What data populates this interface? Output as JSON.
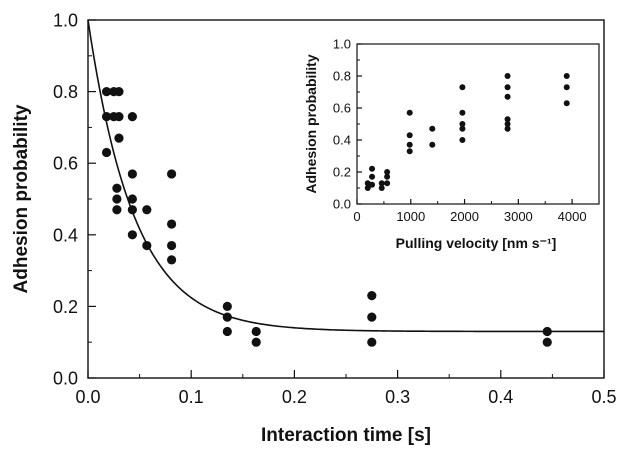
{
  "chart_data": [
    {
      "type": "scatter",
      "xlabel": "Interaction time [s]",
      "ylabel": "Adhesion probability",
      "xlim": [
        0,
        0.5
      ],
      "ylim": [
        0,
        1.0
      ],
      "x_ticks": [
        "0.0",
        "0.1",
        "0.2",
        "0.3",
        "0.4",
        "0.5"
      ],
      "y_ticks": [
        "0.0",
        "0.2",
        "0.4",
        "0.6",
        "0.8",
        "1.0"
      ],
      "grid": false,
      "points": [
        {
          "x": 0.018,
          "y": 0.63
        },
        {
          "x": 0.018,
          "y": 0.73
        },
        {
          "x": 0.018,
          "y": 0.8
        },
        {
          "x": 0.025,
          "y": 0.73
        },
        {
          "x": 0.025,
          "y": 0.8
        },
        {
          "x": 0.028,
          "y": 0.47
        },
        {
          "x": 0.028,
          "y": 0.5
        },
        {
          "x": 0.028,
          "y": 0.53
        },
        {
          "x": 0.03,
          "y": 0.67
        },
        {
          "x": 0.03,
          "y": 0.73
        },
        {
          "x": 0.03,
          "y": 0.8
        },
        {
          "x": 0.043,
          "y": 0.4
        },
        {
          "x": 0.043,
          "y": 0.47
        },
        {
          "x": 0.043,
          "y": 0.5
        },
        {
          "x": 0.043,
          "y": 0.57
        },
        {
          "x": 0.043,
          "y": 0.73
        },
        {
          "x": 0.057,
          "y": 0.37
        },
        {
          "x": 0.057,
          "y": 0.47
        },
        {
          "x": 0.081,
          "y": 0.33
        },
        {
          "x": 0.081,
          "y": 0.37
        },
        {
          "x": 0.081,
          "y": 0.43
        },
        {
          "x": 0.081,
          "y": 0.57
        },
        {
          "x": 0.135,
          "y": 0.13
        },
        {
          "x": 0.135,
          "y": 0.17
        },
        {
          "x": 0.135,
          "y": 0.2
        },
        {
          "x": 0.163,
          "y": 0.1
        },
        {
          "x": 0.163,
          "y": 0.13
        },
        {
          "x": 0.275,
          "y": 0.1
        },
        {
          "x": 0.275,
          "y": 0.17
        },
        {
          "x": 0.275,
          "y": 0.23
        },
        {
          "x": 0.445,
          "y": 0.1
        },
        {
          "x": 0.445,
          "y": 0.13
        }
      ],
      "fit_curve": {
        "form": "exponential decay",
        "y0": 1.0,
        "plateau": 0.13,
        "tau": 0.045
      }
    },
    {
      "type": "scatter",
      "role": "inset",
      "xlabel": "Pulling velocity [nm s⁻¹]",
      "ylabel": "Adhesion probability",
      "xlim": [
        0,
        4500
      ],
      "ylim": [
        0,
        1.0
      ],
      "x_ticks": [
        "0",
        "1000",
        "2000",
        "3000",
        "4000"
      ],
      "y_ticks": [
        "0.0",
        "0.2",
        "0.4",
        "0.6",
        "0.8",
        "1.0"
      ],
      "grid": false,
      "points": [
        {
          "x": 200,
          "y": 0.1
        },
        {
          "x": 200,
          "y": 0.13
        },
        {
          "x": 280,
          "y": 0.12
        },
        {
          "x": 280,
          "y": 0.17
        },
        {
          "x": 280,
          "y": 0.22
        },
        {
          "x": 460,
          "y": 0.1
        },
        {
          "x": 460,
          "y": 0.13
        },
        {
          "x": 560,
          "y": 0.13
        },
        {
          "x": 560,
          "y": 0.17
        },
        {
          "x": 560,
          "y": 0.2
        },
        {
          "x": 980,
          "y": 0.33
        },
        {
          "x": 980,
          "y": 0.37
        },
        {
          "x": 980,
          "y": 0.43
        },
        {
          "x": 980,
          "y": 0.57
        },
        {
          "x": 1400,
          "y": 0.37
        },
        {
          "x": 1400,
          "y": 0.47
        },
        {
          "x": 1960,
          "y": 0.4
        },
        {
          "x": 1960,
          "y": 0.47
        },
        {
          "x": 1960,
          "y": 0.5
        },
        {
          "x": 1960,
          "y": 0.57
        },
        {
          "x": 1960,
          "y": 0.73
        },
        {
          "x": 2800,
          "y": 0.47
        },
        {
          "x": 2800,
          "y": 0.5
        },
        {
          "x": 2800,
          "y": 0.53
        },
        {
          "x": 2800,
          "y": 0.67
        },
        {
          "x": 2800,
          "y": 0.73
        },
        {
          "x": 2800,
          "y": 0.8
        },
        {
          "x": 3900,
          "y": 0.63
        },
        {
          "x": 3900,
          "y": 0.73
        },
        {
          "x": 3900,
          "y": 0.8
        }
      ]
    }
  ]
}
